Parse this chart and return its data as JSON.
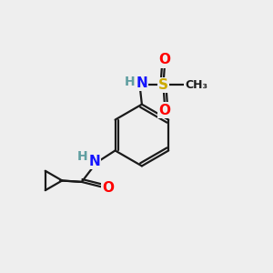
{
  "bg_color": "#eeeeee",
  "bond_color": "#1a1a1a",
  "atom_colors": {
    "N": "#1414ff",
    "O": "#ff0000",
    "S": "#ccaa00",
    "C": "#1a1a1a",
    "H": "#5f9ea0"
  },
  "line_width": 1.6,
  "font_size_atom": 11,
  "font_size_H": 9,
  "font_size_CH3": 9
}
